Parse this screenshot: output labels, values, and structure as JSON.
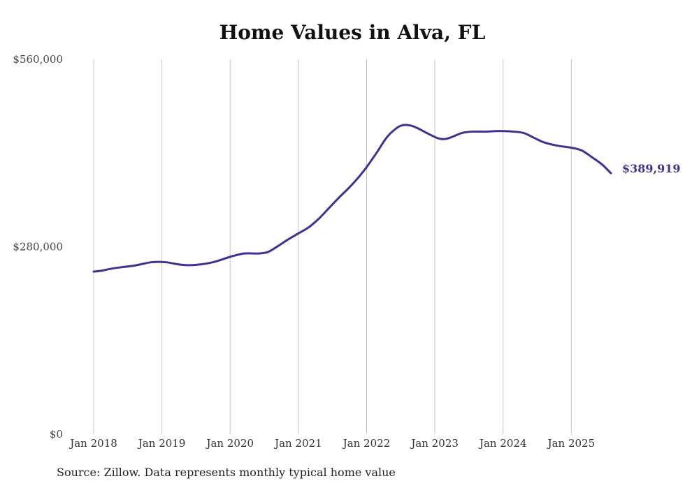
{
  "chart_data": {
    "type": "line",
    "title": "Home Values in Alva, FL",
    "xlabel": "",
    "ylabel": "",
    "ylim": [
      0,
      560000
    ],
    "yticks": [
      {
        "value": 0,
        "label": "$0"
      },
      {
        "value": 280000,
        "label": "$280,000"
      },
      {
        "value": 560000,
        "label": "$560,000"
      }
    ],
    "xticks": [
      {
        "value": 2018.0,
        "label": "Jan 2018"
      },
      {
        "value": 2019.0,
        "label": "Jan 2019"
      },
      {
        "value": 2020.0,
        "label": "Jan 2020"
      },
      {
        "value": 2021.0,
        "label": "Jan 2021"
      },
      {
        "value": 2022.0,
        "label": "Jan 2022"
      },
      {
        "value": 2023.0,
        "label": "Jan 2023"
      },
      {
        "value": 2024.0,
        "label": "Jan 2024"
      },
      {
        "value": 2025.0,
        "label": "Jan 2025"
      }
    ],
    "xlim": [
      2018.0,
      2025.58
    ],
    "grid": "vertical",
    "line_color": "#3b3490",
    "series": [
      {
        "name": "Typical home value",
        "x": [
          2018.0,
          2018.1,
          2018.3,
          2018.6,
          2018.85,
          2019.05,
          2019.3,
          2019.5,
          2019.75,
          2020.0,
          2020.2,
          2020.4,
          2020.55,
          2020.7,
          2020.85,
          2021.0,
          2021.15,
          2021.3,
          2021.45,
          2021.6,
          2021.75,
          2021.9,
          2022.0,
          2022.15,
          2022.3,
          2022.45,
          2022.55,
          2022.65,
          2022.75,
          2022.9,
          2023.05,
          2023.15,
          2023.25,
          2023.4,
          2023.55,
          2023.75,
          2023.95,
          2024.15,
          2024.3,
          2024.45,
          2024.6,
          2024.8,
          2025.0,
          2025.15,
          2025.3,
          2025.45,
          2025.58
        ],
        "values": [
          243000,
          244000,
          248000,
          252000,
          257000,
          257000,
          253000,
          253000,
          257000,
          265000,
          270000,
          270000,
          272000,
          281000,
          291000,
          300000,
          309000,
          322000,
          338000,
          354000,
          369000,
          386000,
          399000,
          421000,
          444000,
          458000,
          462000,
          461000,
          457000,
          449000,
          442000,
          441000,
          444000,
          450000,
          452000,
          452000,
          453000,
          452000,
          450000,
          443000,
          436000,
          431000,
          428000,
          424000,
          414000,
          403000,
          389919
        ]
      }
    ],
    "end_label": "$389,919"
  },
  "source": "Source: Zillow. Data represents monthly typical home value"
}
